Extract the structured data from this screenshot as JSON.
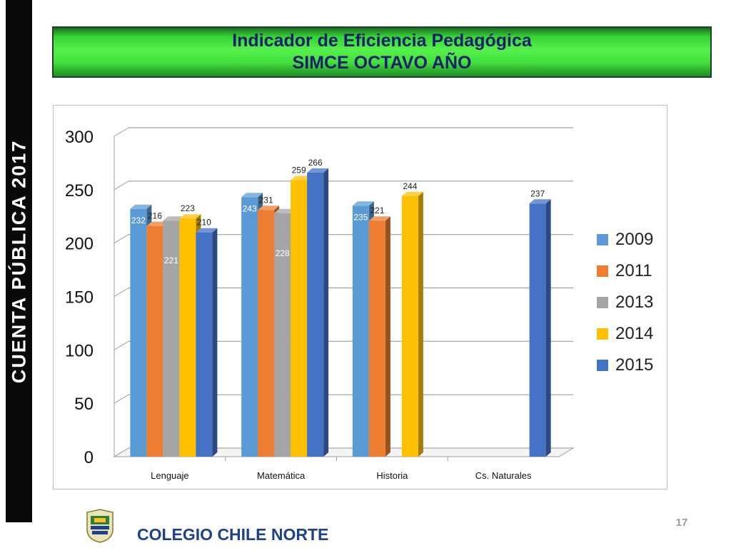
{
  "side_label": "CUENTA  PÚBLICA  2017",
  "banner": {
    "line1": "Indicador de Eficiencia Pedagógica",
    "line2": "SIMCE  OCTAVO  AÑO"
  },
  "footer": {
    "school_name": "COLEGIO CHILE NORTE",
    "page_number": "17",
    "logo_icon": "school-crest-icon"
  },
  "chart_data": {
    "type": "bar",
    "style": "3d-clustered-column",
    "categories": [
      "Lenguaje",
      "Matemática",
      "Historia",
      "Cs. Naturales"
    ],
    "ylim": [
      0,
      300
    ],
    "yticks": [
      "0",
      "50",
      "100",
      "150",
      "200",
      "250",
      "300"
    ],
    "grid": true,
    "legend_position": "right",
    "series": [
      {
        "name": "2009",
        "color": "#5b9bd5",
        "values": [
          232,
          243,
          235,
          null
        ]
      },
      {
        "name": "2011",
        "color": "#ed7d31",
        "values": [
          216,
          231,
          221,
          null
        ]
      },
      {
        "name": "2013",
        "color": "#a5a5a5",
        "values": [
          221,
          228,
          null,
          null
        ]
      },
      {
        "name": "2014",
        "color": "#ffc000",
        "values": [
          223,
          259,
          244,
          null
        ]
      },
      {
        "name": "2015",
        "color": "#4472c4",
        "values": [
          210,
          266,
          null,
          237
        ]
      }
    ]
  }
}
